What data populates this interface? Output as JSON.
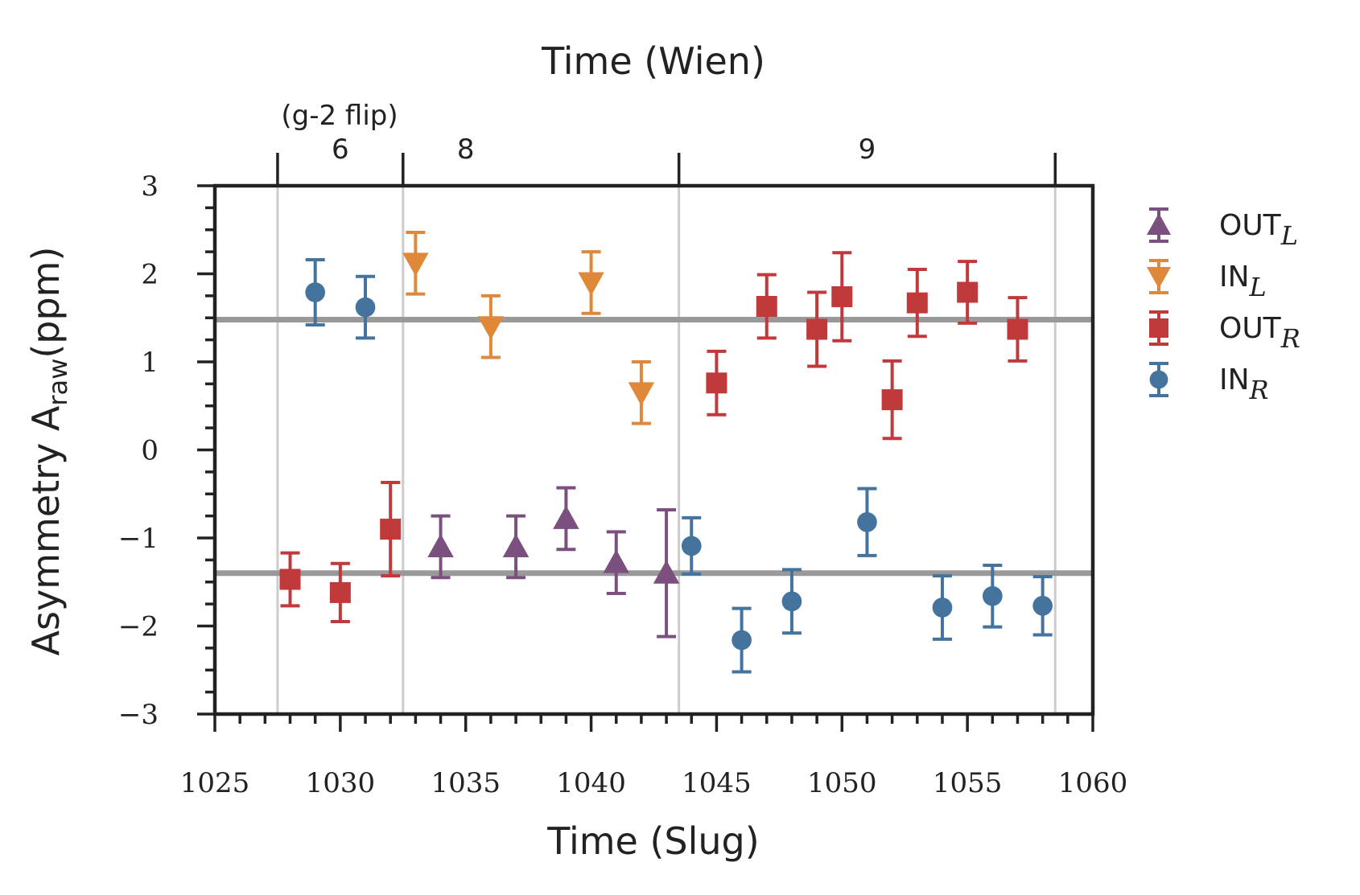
{
  "chart_data": {
    "type": "scatter",
    "title": "Time (Wien)",
    "xlabel": "Time (Slug)",
    "ylabel": "Asymmetry A",
    "ylabel_sub": "raw",
    "ylabel_unit": "(ppm)",
    "xlim": [
      1025,
      1060
    ],
    "ylim": [
      -3,
      3
    ],
    "x_ticks": [
      1025,
      1030,
      1035,
      1040,
      1045,
      1050,
      1055,
      1060
    ],
    "x_tick_labels": [
      "1025",
      "1030",
      "1035",
      "1040",
      "1045",
      "1050",
      "1055",
      "1060"
    ],
    "y_ticks": [
      -3,
      -2,
      -1,
      0,
      1,
      2,
      3
    ],
    "y_tick_labels": [
      "−3",
      "−2",
      "−1",
      "0",
      "1",
      "2",
      "3"
    ],
    "grid": false,
    "legend_position": "outside right",
    "reference_lines": [
      1.48,
      -1.4
    ],
    "wien_boundaries": [
      1027.5,
      1032.5,
      1043.5,
      1058.5
    ],
    "wien_labels": [
      {
        "x": 1030,
        "label": "6"
      },
      {
        "x": 1035,
        "label": "8"
      },
      {
        "x": 1051,
        "label": "9"
      }
    ],
    "wien_annotation": {
      "x": 1030,
      "label": "(g-2 flip)"
    },
    "series": [
      {
        "name": "OUT",
        "subscript": "L",
        "marker": "triangle-up",
        "color": "#7b4f7e",
        "x": [
          1034,
          1037,
          1039,
          1041,
          1043
        ],
        "y": [
          -1.1,
          -1.1,
          -0.78,
          -1.28,
          -1.4
        ],
        "err": [
          0.35,
          0.35,
          0.35,
          0.35,
          0.72
        ]
      },
      {
        "name": "IN",
        "subscript": "L",
        "marker": "triangle-down",
        "color": "#e0883a",
        "x": [
          1033,
          1036,
          1040,
          1042
        ],
        "y": [
          2.12,
          1.4,
          1.9,
          0.65
        ],
        "err": [
          0.35,
          0.35,
          0.35,
          0.35
        ]
      },
      {
        "name": "OUT",
        "subscript": "R",
        "marker": "square",
        "color": "#c0393b",
        "x": [
          1028,
          1030,
          1032,
          1045,
          1047,
          1049,
          1050,
          1052,
          1053,
          1055,
          1057
        ],
        "y": [
          -1.47,
          -1.62,
          -0.9,
          0.76,
          1.63,
          1.37,
          1.74,
          0.57,
          1.67,
          1.79,
          1.37
        ],
        "err": [
          0.3,
          0.33,
          0.53,
          0.36,
          0.36,
          0.42,
          0.5,
          0.44,
          0.38,
          0.35,
          0.36
        ]
      },
      {
        "name": "IN",
        "subscript": "R",
        "marker": "circle",
        "color": "#44739e",
        "x": [
          1029,
          1031,
          1044,
          1046,
          1048,
          1051,
          1054,
          1056,
          1058
        ],
        "y": [
          1.79,
          1.62,
          -1.09,
          -2.16,
          -1.72,
          -0.82,
          -1.79,
          -1.66,
          -1.77
        ],
        "err": [
          0.37,
          0.35,
          0.32,
          0.36,
          0.36,
          0.38,
          0.36,
          0.35,
          0.33
        ]
      }
    ]
  }
}
